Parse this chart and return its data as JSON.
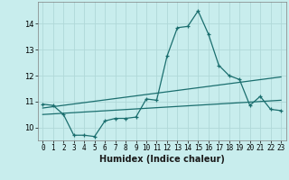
{
  "title": "",
  "xlabel": "Humidex (Indice chaleur)",
  "ylabel": "",
  "bg_color": "#c8eded",
  "grid_color": "#b0d8d8",
  "line_color": "#1a6e6e",
  "xlim": [
    -0.5,
    23.5
  ],
  "ylim": [
    9.5,
    14.85
  ],
  "yticks": [
    10,
    11,
    12,
    13,
    14
  ],
  "xticks": [
    0,
    1,
    2,
    3,
    4,
    5,
    6,
    7,
    8,
    9,
    10,
    11,
    12,
    13,
    14,
    15,
    16,
    17,
    18,
    19,
    20,
    21,
    22,
    23
  ],
  "line1_x": [
    0,
    1,
    2,
    3,
    4,
    5,
    6,
    7,
    8,
    9,
    10,
    11,
    12,
    13,
    14,
    15,
    16,
    17,
    18,
    19,
    20,
    21,
    22,
    23
  ],
  "line1_y": [
    10.9,
    10.85,
    10.5,
    9.7,
    9.7,
    9.65,
    10.25,
    10.35,
    10.35,
    10.4,
    11.1,
    11.05,
    12.75,
    13.85,
    13.9,
    14.5,
    13.6,
    12.4,
    12.0,
    11.85,
    10.85,
    11.2,
    10.7,
    10.65
  ],
  "line2_x": [
    0,
    23
  ],
  "line2_y": [
    10.75,
    11.95
  ],
  "line3_x": [
    0,
    23
  ],
  "line3_y": [
    10.5,
    11.05
  ]
}
